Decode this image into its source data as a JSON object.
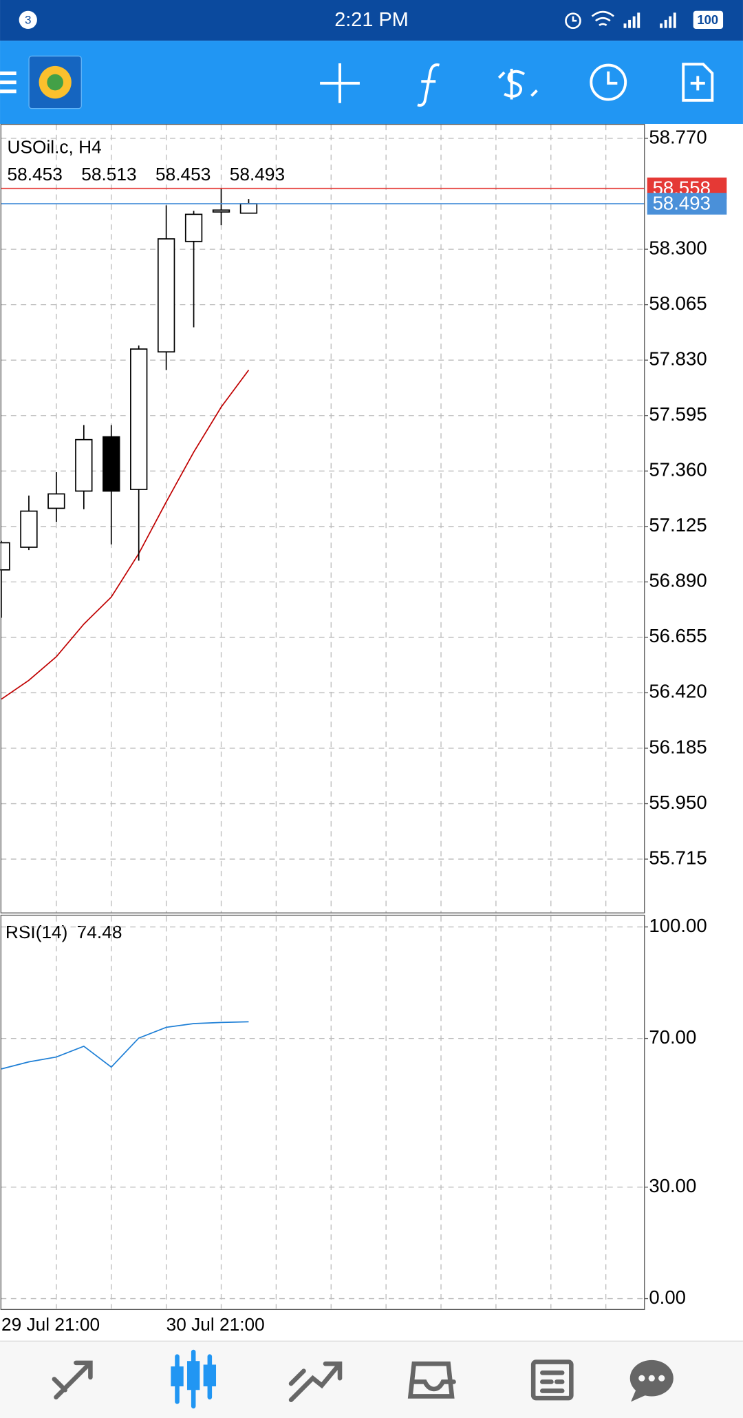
{
  "status_bar": {
    "notification_count": "3",
    "time": "2:21 PM",
    "battery": "100"
  },
  "chart_data": [
    {
      "type": "candlestick",
      "title": "USOil.c, H4",
      "categories": [
        "29 Jul 21:00",
        null,
        null,
        null,
        null,
        null,
        "30 Jul 21:00",
        null,
        null,
        null
      ],
      "open": [
        56.941,
        57.037,
        57.202,
        57.275,
        57.505,
        57.282,
        57.865,
        58.333,
        58.458,
        58.453
      ],
      "high": [
        57.064,
        57.256,
        57.355,
        57.555,
        57.555,
        57.892,
        58.486,
        58.463,
        58.559,
        58.513
      ],
      "low": [
        56.738,
        57.025,
        57.144,
        57.198,
        57.049,
        56.98,
        57.788,
        57.969,
        58.402,
        58.453
      ],
      "close": [
        57.056,
        57.19,
        57.263,
        57.493,
        57.275,
        57.877,
        58.344,
        58.448,
        58.466,
        58.493
      ],
      "up_color": "#ffffff",
      "down_color": "#000000",
      "ma": {
        "color": "#c00000",
        "values": [
          56.393,
          56.473,
          56.573,
          56.711,
          56.826,
          57.01,
          57.229,
          57.44,
          57.631,
          57.788
        ]
      },
      "ask_line": {
        "value": 58.558,
        "color": "#e53935"
      },
      "bid_line": {
        "value": 58.493,
        "color": "#4a90d9"
      },
      "ylim": [
        55.485,
        58.8275
      ],
      "yticks": [
        {
          "value": 58.77,
          "label": "58.770"
        },
        {
          "value": 58.3,
          "label": "58.300"
        },
        58.065,
        {
          "value": 57.83,
          "label": "57.830"
        },
        57.595,
        {
          "value": 57.36,
          "label": "57.360"
        },
        57.125,
        {
          "value": 56.89,
          "label": "56.890"
        },
        56.655,
        {
          "value": 56.42,
          "label": "56.420"
        },
        56.185,
        {
          "value": 55.95,
          "label": "55.950"
        },
        55.715
      ],
      "grid": true
    },
    {
      "type": "line",
      "title": "RSI(14)",
      "values": [
        61.8,
        63.7,
        65.0,
        67.9,
        62.3,
        70.1,
        73.0,
        74.0,
        74.3,
        74.48
      ],
      "color": "#1e7fd6",
      "ylim": [
        -2.92,
        103.16
      ],
      "yticks": [
        {
          "value": 100,
          "label": "100.00"
        },
        {
          "value": 70,
          "label": "70.00"
        },
        {
          "value": 30,
          "label": "30.00"
        },
        {
          "value": 0,
          "label": "0.00"
        }
      ],
      "grid": true
    }
  ]
}
